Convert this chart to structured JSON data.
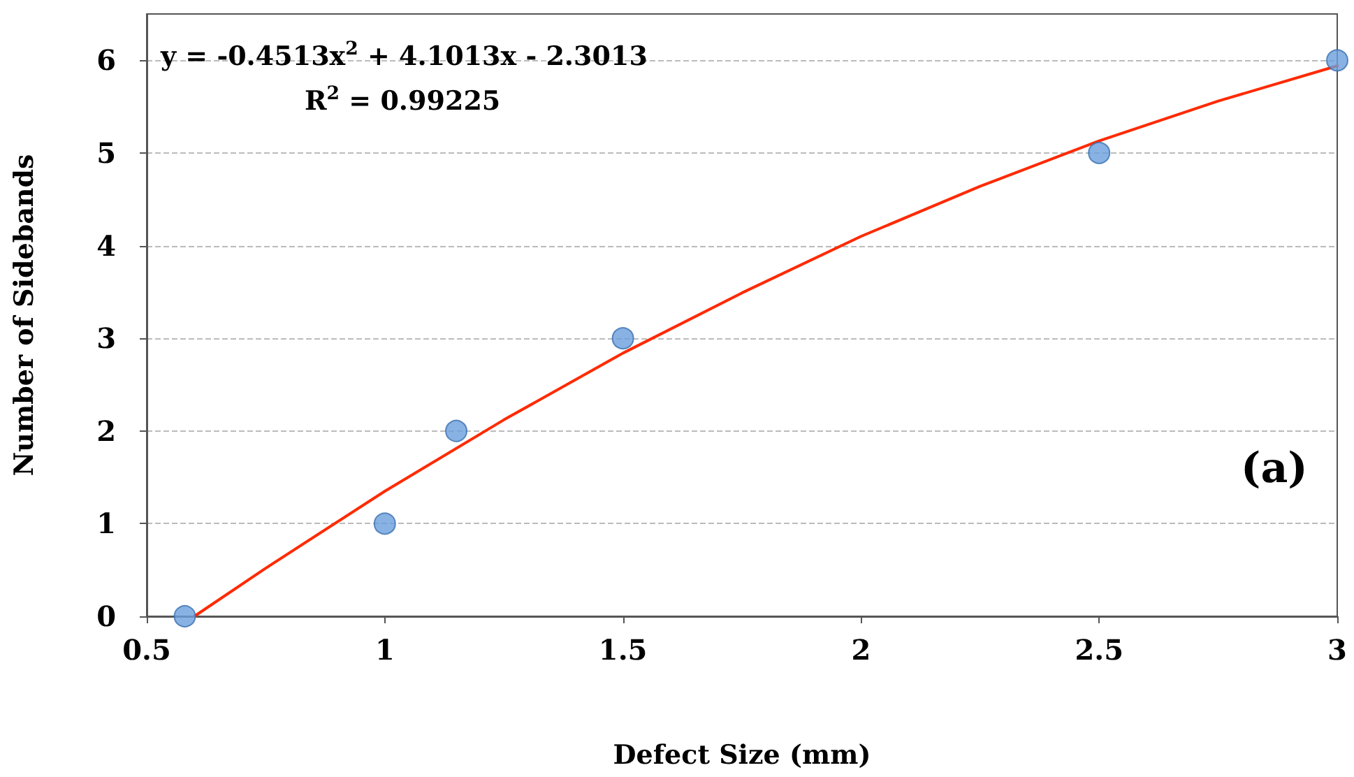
{
  "chart_data": {
    "type": "scatter",
    "xlabel": "Defect Size (mm)",
    "ylabel": "Number of Sidebands",
    "xlim": [
      0.5,
      3
    ],
    "xticks": [
      0.5,
      1,
      1.5,
      2,
      2.5,
      3
    ],
    "ylim": [
      0,
      6.5
    ],
    "yticks": [
      0,
      1,
      2,
      3,
      4,
      5,
      6
    ],
    "grid": "y",
    "marker": "circle",
    "series": [
      {
        "color": "#6a9fdc",
        "x": [
          0.58,
          1,
          1.15,
          1.5,
          2.5,
          3
        ],
        "values": [
          0,
          1,
          2,
          3,
          5,
          6
        ]
      },
      {
        "type": "line",
        "color": "#ff2a00",
        "marker": "none",
        "x": [
          0.6,
          0.75,
          1,
          1.25,
          1.5,
          1.75,
          2,
          2.25,
          2.5,
          2.75,
          3
        ],
        "values": [
          0,
          0.52,
          1.35,
          2.12,
          2.84,
          3.49,
          4.1,
          4.64,
          5.13,
          5.56,
          5.94
        ]
      }
    ],
    "annotations": [
      "y = -0.4513x$^{2}$ + 4.1013x - 2.3013",
      "R$^{2}$ = 0.99225",
      "(a)"
    ]
  }
}
